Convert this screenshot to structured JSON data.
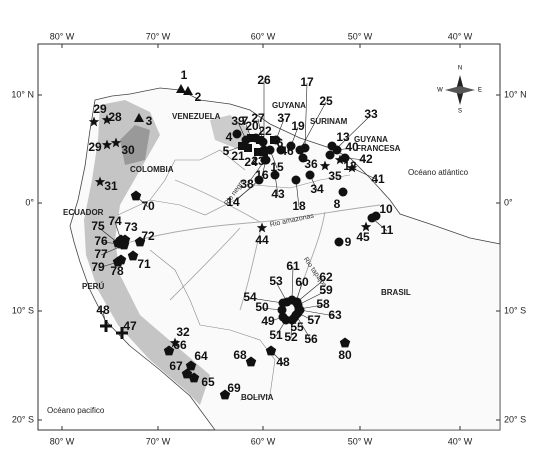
{
  "lon_labels": [
    "80° W",
    "70° W",
    "60° W",
    "50° W",
    "40° W"
  ],
  "lat_labels": [
    "10° N",
    "0°",
    "10° S",
    "20° S"
  ],
  "countries": {
    "venezuela": "VENEZUELA",
    "colombia": "COLOMBIA",
    "guyana": "GUYANA",
    "surinam": "SURINAM",
    "guyana_francesa": [
      "GUYANA",
      "FRANCESA"
    ],
    "ecuador": "ECUADOR",
    "peru": "PERÚ",
    "brasil": "BRASIL",
    "bolivia": "BOLIVIA"
  },
  "rivers": {
    "negro": "Rio negro",
    "amazonas": "Rio amazonas",
    "tapajos": "Rio tapajós"
  },
  "oceans": {
    "atlantic": "Océano atlántico",
    "pacific": "Océano pacifico"
  },
  "compass": {
    "n": "N",
    "s": "S",
    "e": "E",
    "w": "W"
  },
  "sites": [
    {
      "label": "1",
      "marker": "triangle"
    },
    {
      "label": "2",
      "marker": "triangle"
    },
    {
      "label": "3",
      "marker": "triangle"
    },
    {
      "label": "4",
      "marker": "circle"
    },
    {
      "label": "5",
      "marker": "square"
    },
    {
      "label": "6",
      "marker": "square"
    },
    {
      "label": "7",
      "marker": "square"
    },
    {
      "label": "8",
      "marker": "circle"
    },
    {
      "label": "9",
      "marker": "circle"
    },
    {
      "label": "10",
      "marker": "circle"
    },
    {
      "label": "11",
      "marker": "circle"
    },
    {
      "label": "12",
      "marker": "star"
    },
    {
      "label": "13",
      "marker": "circle"
    },
    {
      "label": "14",
      "marker": "circle"
    },
    {
      "label": "15",
      "marker": "circle"
    },
    {
      "label": "16",
      "marker": "circle"
    },
    {
      "label": "17",
      "marker": "circle"
    },
    {
      "label": "18",
      "marker": "circle"
    },
    {
      "label": "19",
      "marker": "circle"
    },
    {
      "label": "20",
      "marker": "circle"
    },
    {
      "label": "21",
      "marker": "square"
    },
    {
      "label": "22",
      "marker": "square"
    },
    {
      "label": "23",
      "marker": "square"
    },
    {
      "label": "24",
      "marker": "square"
    },
    {
      "label": "25",
      "marker": "circle"
    },
    {
      "label": "26",
      "marker": "circle"
    },
    {
      "label": "27",
      "marker": "circle"
    },
    {
      "label": "28",
      "marker": "star"
    },
    {
      "label": "29",
      "marker": "star"
    },
    {
      "label": "29",
      "marker": "star"
    },
    {
      "label": "30",
      "marker": "star"
    },
    {
      "label": "31",
      "marker": "star"
    },
    {
      "label": "32",
      "marker": "star"
    },
    {
      "label": "33",
      "marker": "circle"
    },
    {
      "label": "34",
      "marker": "circle"
    },
    {
      "label": "35",
      "marker": "star"
    },
    {
      "label": "36",
      "marker": "circle"
    },
    {
      "label": "37",
      "marker": "circle"
    },
    {
      "label": "38",
      "marker": "circle"
    },
    {
      "label": "39",
      "marker": "circle"
    },
    {
      "label": "40",
      "marker": "circle"
    },
    {
      "label": "41",
      "marker": "star"
    },
    {
      "label": "42",
      "marker": "circle"
    },
    {
      "label": "43",
      "marker": "circle"
    },
    {
      "label": "44",
      "marker": "star"
    },
    {
      "label": "45",
      "marker": "star"
    },
    {
      "label": "46",
      "marker": "circle"
    },
    {
      "label": "47",
      "marker": "cross"
    },
    {
      "label": "48",
      "marker": "cross"
    },
    {
      "label": "48",
      "marker": "pentagon"
    },
    {
      "label": "49",
      "marker": "circle"
    },
    {
      "label": "50",
      "marker": "circle"
    },
    {
      "label": "51",
      "marker": "circle"
    },
    {
      "label": "52",
      "marker": "circle"
    },
    {
      "label": "53",
      "marker": "circle"
    },
    {
      "label": "54",
      "marker": "circle"
    },
    {
      "label": "55",
      "marker": "circle"
    },
    {
      "label": "56",
      "marker": "circle"
    },
    {
      "label": "57",
      "marker": "circle"
    },
    {
      "label": "58",
      "marker": "circle"
    },
    {
      "label": "59",
      "marker": "circle"
    },
    {
      "label": "60",
      "marker": "circle"
    },
    {
      "label": "61",
      "marker": "circle"
    },
    {
      "label": "62",
      "marker": "circle"
    },
    {
      "label": "63",
      "marker": "circle"
    },
    {
      "label": "64",
      "marker": "pentagon"
    },
    {
      "label": "65",
      "marker": "pentagon"
    },
    {
      "label": "66",
      "marker": "pentagon"
    },
    {
      "label": "67",
      "marker": "pentagon"
    },
    {
      "label": "68",
      "marker": "pentagon"
    },
    {
      "label": "69",
      "marker": "pentagon"
    },
    {
      "label": "70",
      "marker": "pentagon"
    },
    {
      "label": "71",
      "marker": "pentagon"
    },
    {
      "label": "72",
      "marker": "pentagon"
    },
    {
      "label": "73",
      "marker": "pentagon"
    },
    {
      "label": "74",
      "marker": "pentagon"
    },
    {
      "label": "75",
      "marker": "pentagon"
    },
    {
      "label": "76",
      "marker": "pentagon"
    },
    {
      "label": "77",
      "marker": "pentagon"
    },
    {
      "label": "78",
      "marker": "pentagon"
    },
    {
      "label": "79",
      "marker": "pentagon"
    },
    {
      "label": "80",
      "marker": "pentagon"
    }
  ]
}
